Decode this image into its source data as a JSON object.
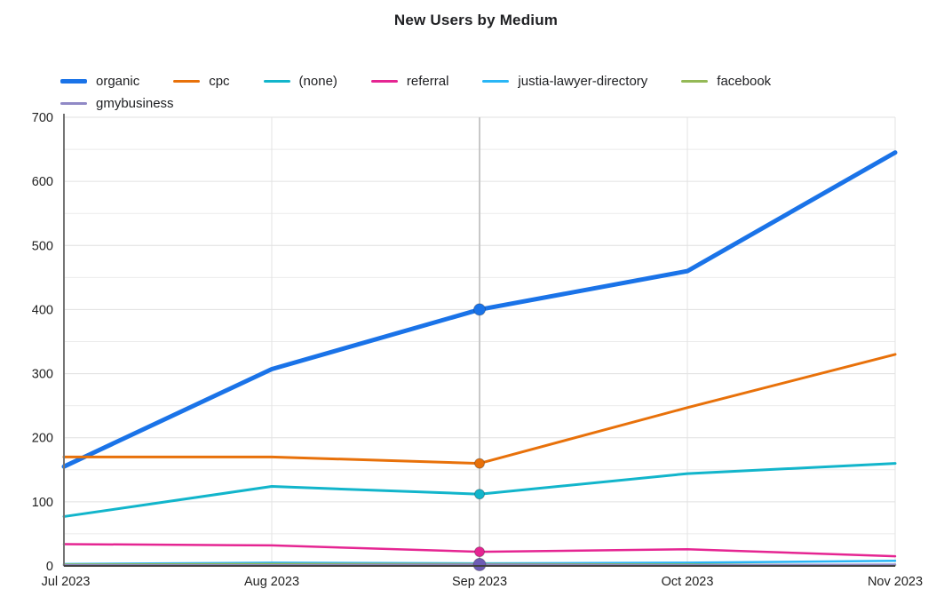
{
  "chart_data": {
    "type": "line",
    "title": "New Users by Medium",
    "x_categories": [
      "Jul 2023",
      "Aug 2023",
      "Sep 2023",
      "Oct 2023",
      "Nov 2023"
    ],
    "y_axis": {
      "min": 0,
      "max": 700,
      "label_step": 100,
      "minor_step": 50,
      "tick_labels": [
        "0",
        "100",
        "200",
        "300",
        "400",
        "500",
        "600",
        "700"
      ]
    },
    "series": [
      {
        "name": "organic",
        "color": "#1a73e8",
        "width": 5,
        "values": [
          155,
          307,
          400,
          460,
          645
        ]
      },
      {
        "name": "cpc",
        "color": "#e8710a",
        "width": 3,
        "values": [
          170,
          170,
          160,
          247,
          330
        ]
      },
      {
        "name": "(none)",
        "color": "#12b5cb",
        "width": 3,
        "values": [
          77,
          124,
          112,
          144,
          160
        ]
      },
      {
        "name": "referral",
        "color": "#e52592",
        "width": 2.5,
        "values": [
          34,
          32,
          22,
          26,
          15
        ]
      },
      {
        "name": "justia-lawyer-directory",
        "color": "#29b6f6",
        "width": 2.5,
        "values": [
          3,
          5,
          4,
          5,
          8
        ]
      },
      {
        "name": "facebook",
        "color": "#94b956",
        "width": 2.5,
        "values": [
          2,
          3,
          3,
          2,
          1
        ]
      },
      {
        "name": "gmybusiness",
        "color": "#9089c6",
        "width": 2.5,
        "values": [
          1,
          1,
          2,
          1,
          2
        ],
        "marker_color": "#6e5cb5"
      }
    ],
    "highlight": {
      "category": "Sep 2023",
      "index": 2
    },
    "legend_position": "top-left",
    "grid": true
  }
}
